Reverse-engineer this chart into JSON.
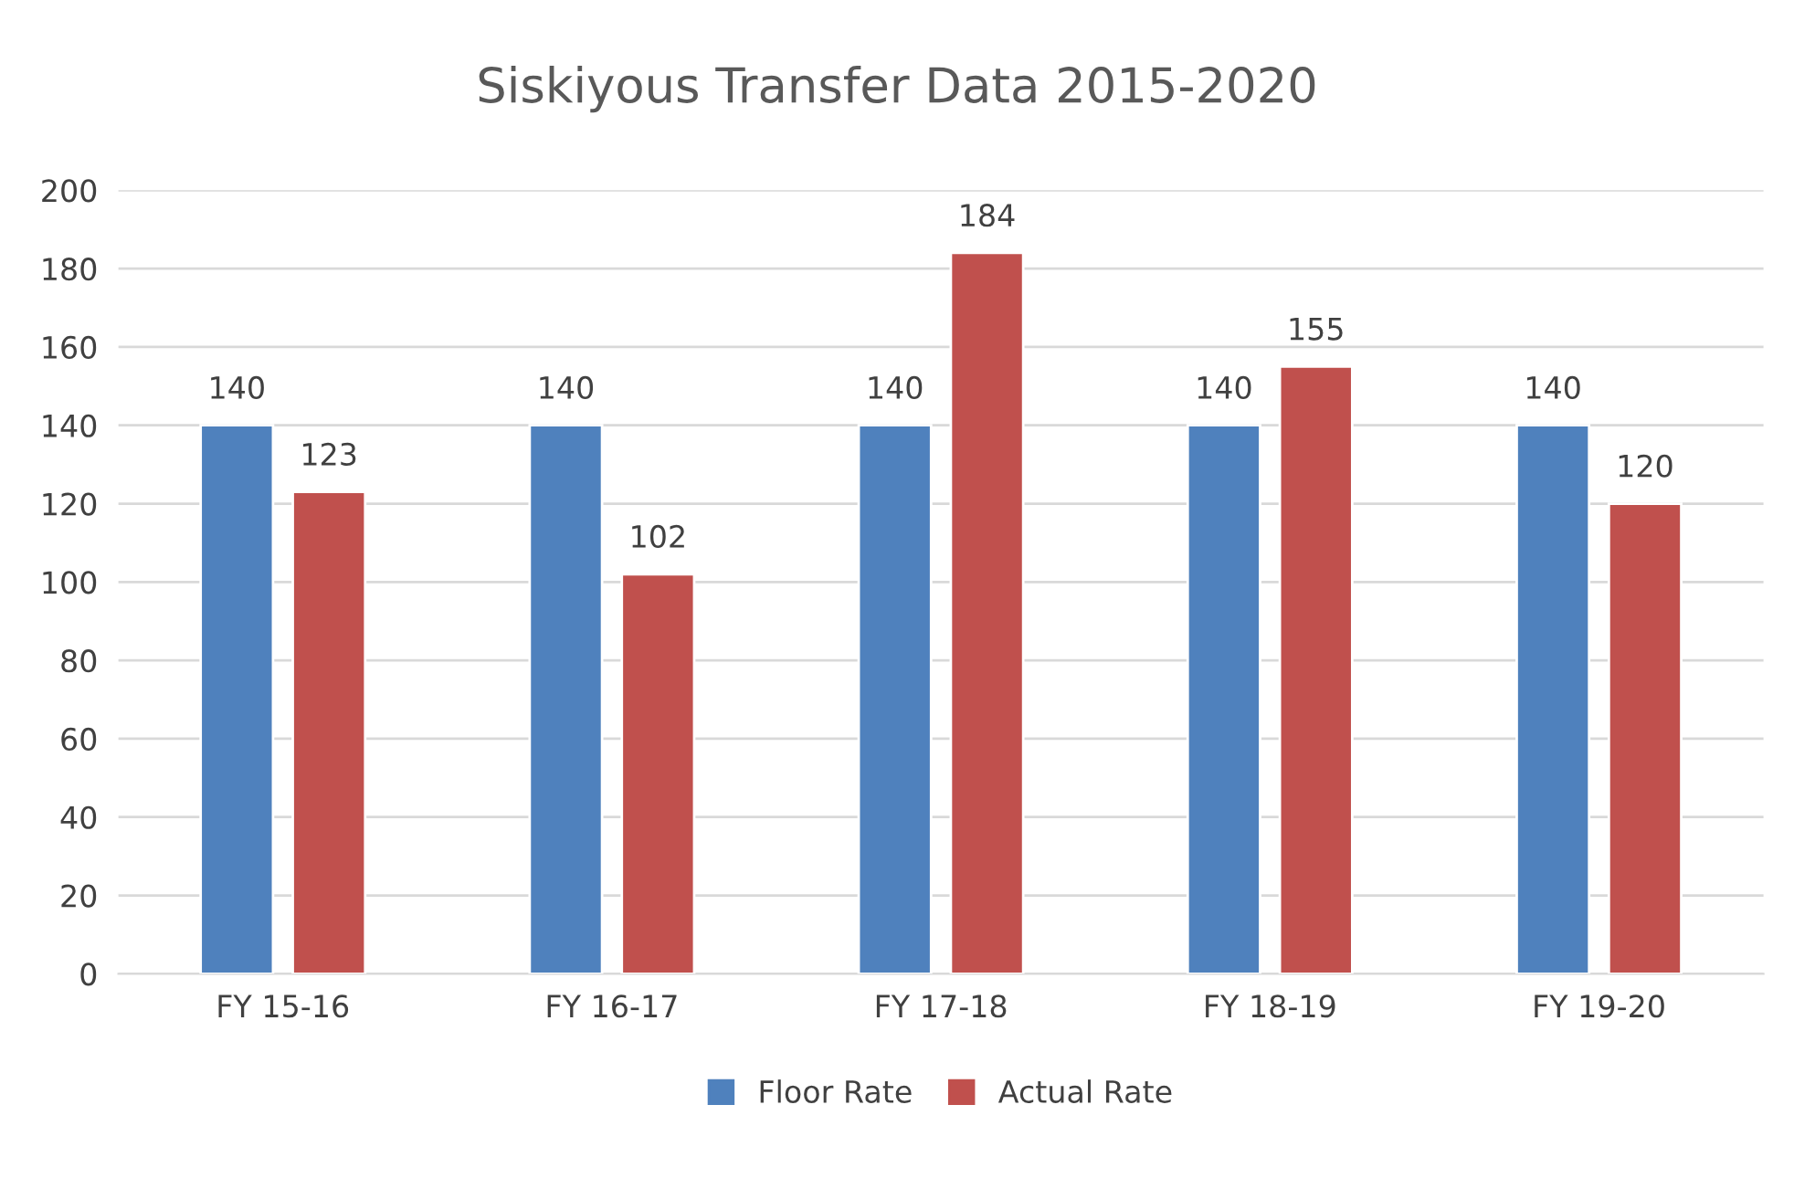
{
  "chart_data": {
    "type": "bar",
    "title": "Siskiyous Transfer Data 2015-2020",
    "categories": [
      "FY 15-16",
      "FY 16-17",
      "FY 17-18",
      "FY 18-19",
      "FY 19-20"
    ],
    "series": [
      {
        "name": "Floor Rate",
        "color": "#4f81bd",
        "values": [
          140,
          140,
          140,
          140,
          140
        ]
      },
      {
        "name": "Actual Rate",
        "color": "#c0504d",
        "values": [
          123,
          102,
          184,
          155,
          120
        ]
      }
    ],
    "ylim": [
      0,
      200
    ],
    "yticks": [
      0,
      20,
      40,
      60,
      80,
      100,
      120,
      140,
      160,
      180,
      200
    ],
    "grid": "y",
    "legend": "bottom",
    "data_labels": true
  }
}
